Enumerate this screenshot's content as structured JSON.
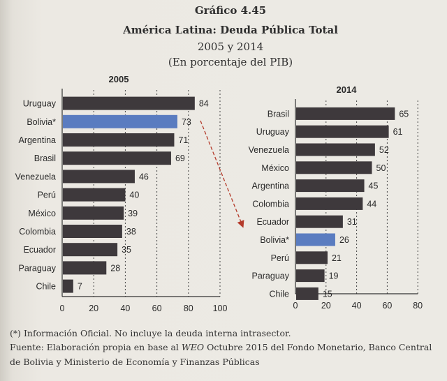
{
  "header": {
    "figure_number": "Gráfico 4.45",
    "title": "América Latina: Deuda Pública Total",
    "years": "2005 y 2014",
    "unit": "(En porcentaje del PIB)"
  },
  "colors": {
    "bar": "#3e393c",
    "highlight": "#5a7cc0",
    "arrow": "#b43a2a"
  },
  "chart_data": [
    {
      "type": "bar",
      "orientation": "horizontal",
      "title": "2005",
      "categories": [
        "Uruguay",
        "Bolivia*",
        "Argentina",
        "Brasil",
        "Venezuela",
        "Perú",
        "México",
        "Colombia",
        "Ecuador",
        "Paraguay",
        "Chile"
      ],
      "values": [
        84,
        73,
        71,
        69,
        46,
        40,
        39,
        38,
        35,
        28,
        7
      ],
      "highlight": "Bolivia*",
      "xlim": [
        0,
        100
      ],
      "xticks": [
        0,
        20,
        40,
        60,
        80,
        100
      ],
      "grid": "vertical dashed"
    },
    {
      "type": "bar",
      "orientation": "horizontal",
      "title": "2014",
      "categories": [
        "Brasil",
        "Uruguay",
        "Venezuela",
        "México",
        "Argentina",
        "Colombia",
        "Ecuador",
        "Bolivia*",
        "Perú",
        "Paraguay",
        "Chile"
      ],
      "values": [
        65,
        61,
        52,
        50,
        45,
        44,
        31,
        26,
        21,
        19,
        15
      ],
      "highlight": "Bolivia*",
      "xlim": [
        0,
        80
      ],
      "xticks": [
        0,
        20,
        40,
        60,
        80
      ],
      "grid": "vertical dashed"
    }
  ],
  "footer": {
    "note": "(*) Información Oficial. No incluye la deuda interna intrasector.",
    "source_pre": "Fuente: Elaboración propia en base al ",
    "source_em": "WEO",
    "source_post": " Octubre 2015 del Fondo Monetario, Banco Central",
    "source_line2": "de Bolivia y Ministerio de Economía y Finanzas Públicas"
  }
}
